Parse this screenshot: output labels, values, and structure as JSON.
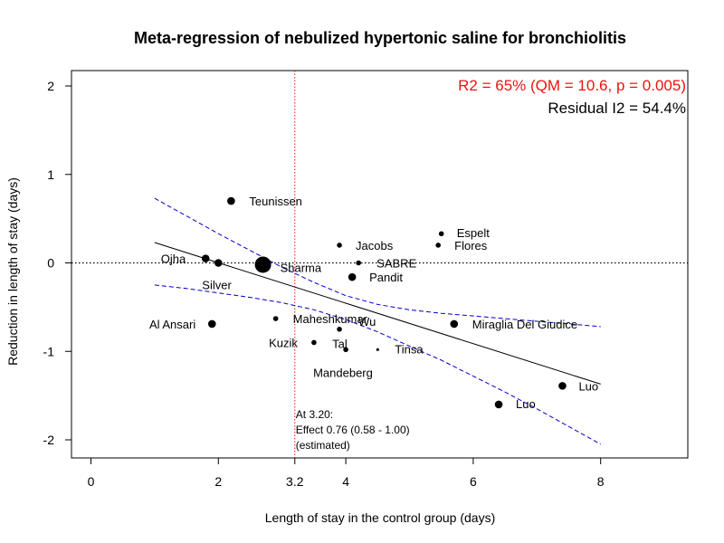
{
  "chart_data": {
    "type": "scatter",
    "title": "Meta-regression of nebulized hypertonic saline for bronchiolitis",
    "xlabel": "Length of stay in the control group (days)",
    "ylabel": "Reduction in length of stay (days)",
    "xlim": [
      -0.4,
      9.3
    ],
    "ylim": [
      -2.15,
      2.15
    ],
    "xticks": [
      "0",
      "2",
      "4",
      "6",
      "8"
    ],
    "yticks": [
      "2",
      "1",
      "0",
      "-1",
      "-2"
    ],
    "reference_x": 3.2,
    "reference_x_label": "3.2",
    "reference_y": 0,
    "stats_line1": "R2 = 65% (QM = 10.6, p = 0.005)",
    "stats_line2": "Residual I2 = 54.4%",
    "stats_color_1": "#e8140f",
    "stats_color_2": "#000000",
    "annotation_lines": [
      "At 3.20:",
      "Effect 0.76 (0.58 - 1.00)",
      "(estimated)"
    ],
    "regression_line": {
      "x": [
        1.0,
        8.0
      ],
      "y": [
        0.23,
        -1.37
      ],
      "color": "#000000"
    },
    "ci_upper": {
      "x": [
        1.0,
        1.5,
        2.0,
        2.5,
        3.0,
        3.5,
        4.0,
        4.5,
        5.0,
        5.5,
        6.0,
        6.5,
        7.0,
        7.5,
        8.0
      ],
      "y": [
        0.73,
        0.53,
        0.33,
        0.14,
        -0.05,
        -0.22,
        -0.37,
        -0.47,
        -0.53,
        -0.57,
        -0.6,
        -0.63,
        -0.66,
        -0.69,
        -0.72
      ],
      "color": "#0000cc"
    },
    "ci_lower": {
      "x": [
        1.0,
        1.5,
        2.0,
        2.5,
        3.0,
        3.5,
        4.0,
        4.5,
        5.0,
        5.5,
        6.0,
        6.5,
        7.0,
        7.5,
        8.0
      ],
      "y": [
        -0.25,
        -0.29,
        -0.34,
        -0.39,
        -0.45,
        -0.53,
        -0.64,
        -0.78,
        -0.94,
        -1.1,
        -1.28,
        -1.46,
        -1.65,
        -1.85,
        -2.05
      ],
      "color": "#0000cc"
    },
    "points": [
      {
        "name": "Teunissen",
        "x": 2.2,
        "y": 0.7,
        "size": "medium"
      },
      {
        "name": "Espelt",
        "x": 5.5,
        "y": 0.33,
        "size": "small"
      },
      {
        "name": "Jacobs",
        "x": 3.9,
        "y": 0.2,
        "size": "small"
      },
      {
        "name": "Flores",
        "x": 5.45,
        "y": 0.2,
        "size": "small",
        "label_color": "#e8140f"
      },
      {
        "name": "Ojha",
        "x": 1.8,
        "y": 0.05,
        "size": "medium"
      },
      {
        "name": "Sharma",
        "x": 2.0,
        "y": 0.0,
        "size": "medium"
      },
      {
        "name": "Sharma",
        "x": 2.7,
        "y": -0.02,
        "size": "large"
      },
      {
        "name": "SABRE",
        "x": 4.2,
        "y": 0.0,
        "size": "small"
      },
      {
        "name": "Pandit",
        "x": 4.1,
        "y": -0.16,
        "size": "medium"
      },
      {
        "name": "Silver",
        "x": 2.0,
        "y": 0.0,
        "size": "none"
      },
      {
        "name": "Al Ansari",
        "x": 1.9,
        "y": -0.69,
        "size": "medium"
      },
      {
        "name": "Maheshkumar",
        "x": 2.9,
        "y": -0.63,
        "size": "small"
      },
      {
        "name": "Wu",
        "x": 3.9,
        "y": -0.75,
        "size": "small"
      },
      {
        "name": "Miraglia Del Giudice",
        "x": 5.7,
        "y": -0.69,
        "size": "medium"
      },
      {
        "name": "Kuzik",
        "x": 3.5,
        "y": -0.9,
        "size": "small"
      },
      {
        "name": "Tal",
        "x": 4.0,
        "y": -0.98,
        "size": "small"
      },
      {
        "name": "Tinsa",
        "x": 4.5,
        "y": -0.98,
        "size": "tiny"
      },
      {
        "name": "Mandeberg",
        "x": 4.0,
        "y": -0.98,
        "size": "none"
      },
      {
        "name": "Luo",
        "x": 7.4,
        "y": -1.39,
        "size": "medium"
      },
      {
        "name": "Luo",
        "x": 6.4,
        "y": -1.6,
        "size": "medium"
      }
    ]
  }
}
